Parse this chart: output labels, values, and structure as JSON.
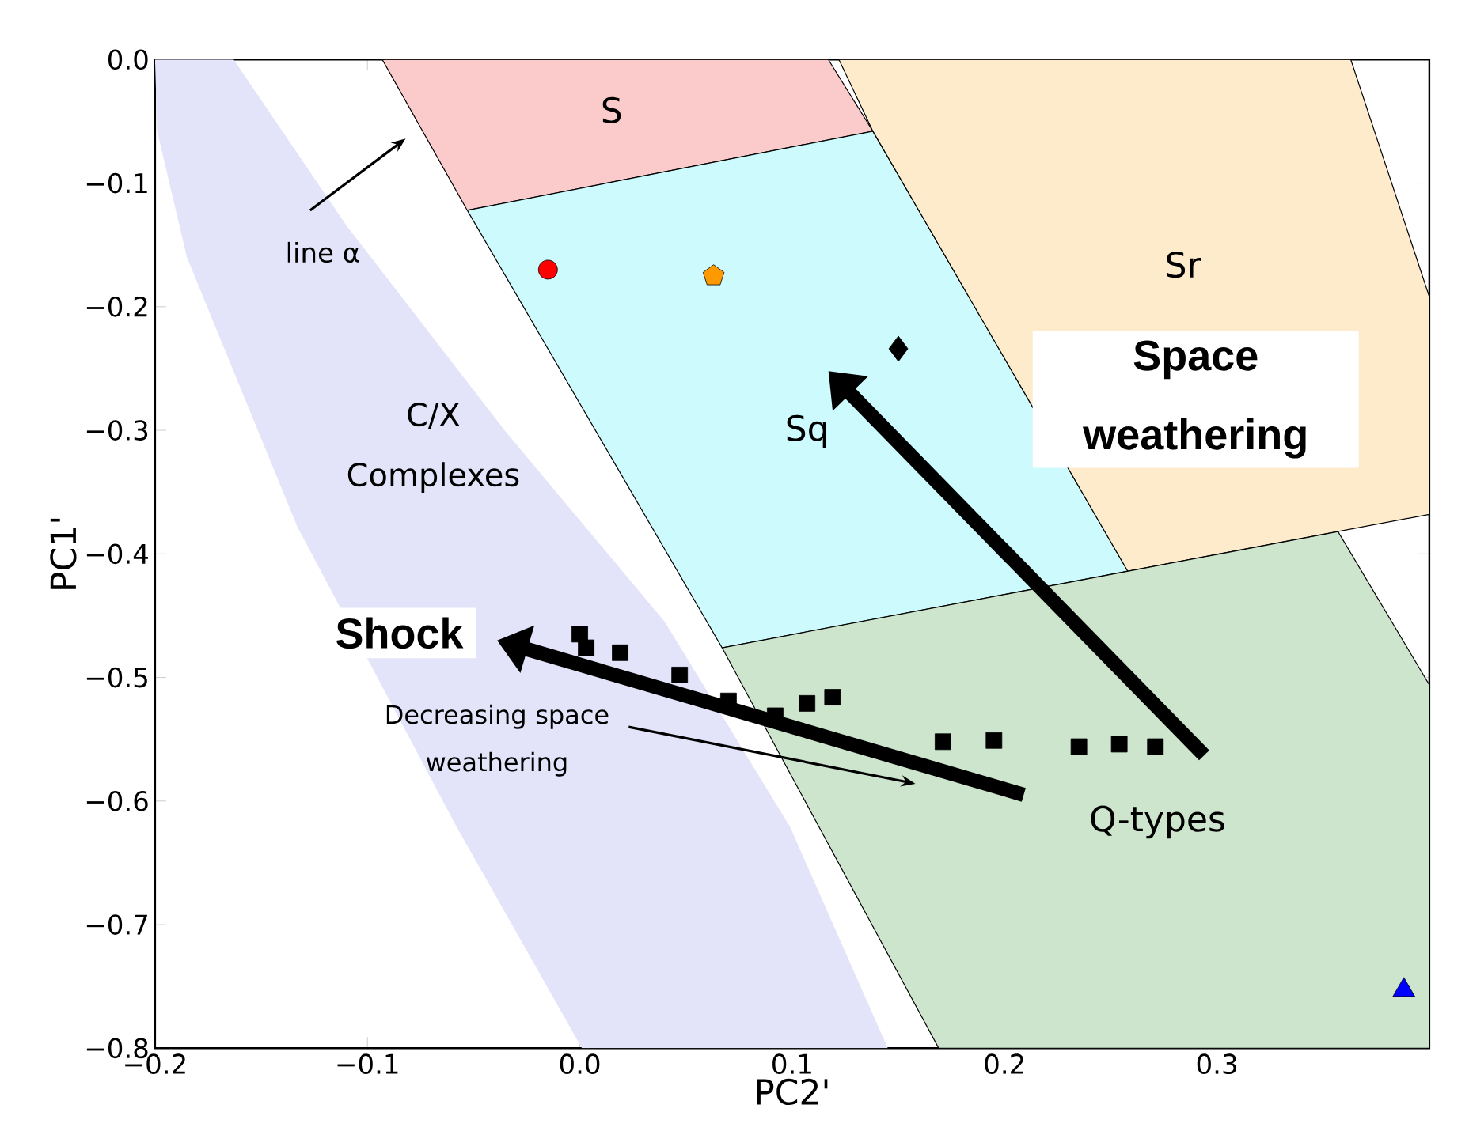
{
  "chart_data": {
    "type": "scatter",
    "xlabel": "PC2'",
    "ylabel": "PC1'",
    "xlim": [
      -0.2,
      0.4
    ],
    "ylim": [
      -0.8,
      0.0
    ],
    "xticks": [
      {
        "value": -0.2,
        "label": "−0.2"
      },
      {
        "value": -0.1,
        "label": "−0.1"
      },
      {
        "value": 0.0,
        "label": "0.0"
      },
      {
        "value": 0.1,
        "label": "0.1"
      },
      {
        "value": 0.2,
        "label": "0.2"
      },
      {
        "value": 0.3,
        "label": "0.3"
      }
    ],
    "yticks": [
      {
        "value": -0.8,
        "label": "−0.8"
      },
      {
        "value": -0.7,
        "label": "−0.7"
      },
      {
        "value": -0.6,
        "label": "−0.6"
      },
      {
        "value": -0.5,
        "label": "−0.5"
      },
      {
        "value": -0.4,
        "label": "−0.4"
      },
      {
        "value": -0.3,
        "label": "−0.3"
      },
      {
        "value": -0.2,
        "label": "−0.2"
      },
      {
        "value": -0.1,
        "label": "−0.1"
      },
      {
        "value": 0.0,
        "label": "0.0"
      }
    ],
    "series": [
      {
        "type": "area",
        "color": "#e3e3fa",
        "x": [
          -0.2,
          -0.163,
          -0.11,
          -0.035,
          0.04,
          0.099,
          0.145,
          0.001,
          -0.058,
          -0.133,
          -0.185,
          -0.199
        ],
        "values": [
          0.0,
          0.0,
          -0.134,
          -0.301,
          -0.455,
          -0.621,
          -0.8,
          -0.8,
          -0.621,
          -0.378,
          -0.16,
          -0.058
        ]
      },
      {
        "type": "area",
        "color": "#fbcaca",
        "x": [
          -0.093,
          0.117,
          0.138,
          -0.053
        ],
        "values": [
          0.0,
          0.0,
          -0.058,
          -0.122
        ]
      },
      {
        "type": "area",
        "color": "#ccfafd",
        "x": [
          -0.053,
          0.138,
          0.258,
          0.067
        ],
        "values": [
          -0.122,
          -0.058,
          -0.414,
          -0.476
        ]
      },
      {
        "type": "area",
        "color": "#fdebcc",
        "x": [
          0.122,
          0.363,
          0.4,
          0.4,
          0.258,
          0.138
        ],
        "values": [
          0.0,
          0.0,
          -0.192,
          -0.368,
          -0.414,
          -0.058
        ]
      },
      {
        "type": "area",
        "color": "#cce5cc",
        "x": [
          0.067,
          0.357,
          0.4,
          0.4,
          0.169
        ],
        "values": [
          -0.476,
          -0.382,
          -0.506,
          -0.8,
          -0.8
        ]
      },
      {
        "marker": "square",
        "color": "#000000",
        "x": [
          0.0,
          0.003,
          0.019,
          0.047,
          0.07,
          0.092,
          0.107,
          0.119,
          0.171,
          0.195,
          0.235,
          0.254,
          0.271
        ],
        "values": [
          -0.465,
          -0.476,
          -0.48,
          -0.498,
          -0.519,
          -0.531,
          -0.521,
          -0.516,
          -0.552,
          -0.551,
          -0.556,
          -0.554,
          -0.556
        ]
      },
      {
        "marker": "circle",
        "color": "#ff0000",
        "x": [
          -0.015
        ],
        "values": [
          -0.17
        ]
      },
      {
        "color": "#ff9900",
        "x": [
          0.063
        ],
        "values": [
          -0.175
        ]
      },
      {
        "marker": "diamond",
        "color": "#000000",
        "x": [
          0.15
        ],
        "values": [
          -0.234
        ]
      },
      {
        "marker": "triangle",
        "color": "#0000ff",
        "x": [
          0.388
        ],
        "values": [
          -0.753
        ]
      }
    ],
    "annotations": [
      "S",
      "Sr",
      "Sq",
      "C/X Complexes",
      "Q-types",
      "line α",
      "Decreasing space weathering",
      "Space weathering",
      "Shock"
    ]
  }
}
